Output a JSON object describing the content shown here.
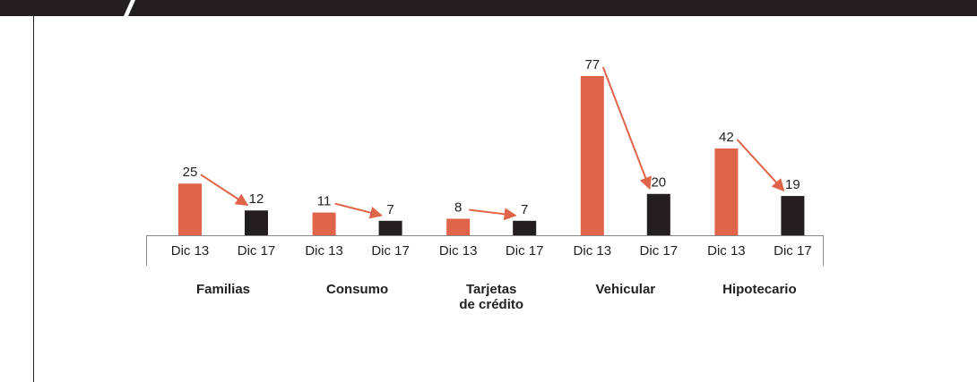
{
  "chart_data": {
    "type": "bar",
    "categories": [
      "Familias",
      "Consumo",
      "Tarjetas\nde crédito",
      "Vehicular",
      "Hipotecario"
    ],
    "series": [
      {
        "name": "Dic 13",
        "color": "#e0644a",
        "values": [
          25,
          11,
          8,
          77,
          42
        ]
      },
      {
        "name": "Dic 17",
        "color": "#231f20",
        "values": [
          12,
          7,
          7,
          20,
          19
        ]
      }
    ],
    "arrows": true
  }
}
